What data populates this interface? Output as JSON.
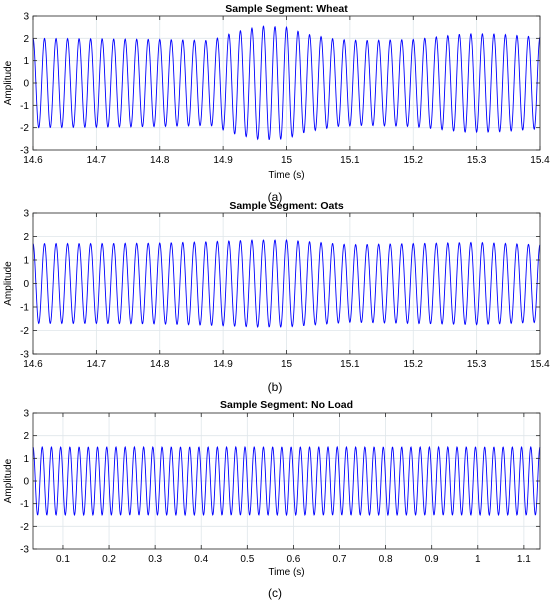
{
  "chart_data": [
    {
      "type": "line",
      "title": "Sample Segment: Wheat",
      "xlabel": "Time (s)",
      "ylabel": "Amplitude",
      "panel_label": "(a)",
      "xlim": [
        14.6,
        15.4
      ],
      "ylim": [
        -3,
        3
      ],
      "x_ticks": [
        "14.6",
        "14.7",
        "14.8",
        "14.9",
        "15",
        "15.1",
        "15.2",
        "15.3",
        "15.4"
      ],
      "y_ticks": [
        "-3",
        "-2",
        "-1",
        "0",
        "1",
        "2",
        "3"
      ],
      "grid": true,
      "signal": {
        "cycles_in_window": 44,
        "envelope": {
          "t": [
            14.6,
            14.7,
            14.8,
            14.88,
            14.92,
            14.96,
            15.0,
            15.03,
            15.08,
            15.12,
            15.2,
            15.28,
            15.33,
            15.4
          ],
          "amp": [
            2.0,
            1.98,
            1.95,
            1.9,
            2.3,
            2.55,
            2.5,
            2.2,
            1.95,
            1.9,
            1.95,
            2.2,
            2.2,
            2.05
          ]
        }
      }
    },
    {
      "type": "line",
      "title": "Sample Segment: Oats",
      "xlabel": "",
      "ylabel": "Amplitude",
      "panel_label": "(b)",
      "xlim": [
        14.6,
        15.4
      ],
      "ylim": [
        -3,
        3
      ],
      "x_ticks": [
        "14.6",
        "14.7",
        "14.8",
        "14.9",
        "15",
        "15.1",
        "15.2",
        "15.3",
        "15.4"
      ],
      "y_ticks": [
        "-3",
        "-2",
        "-1",
        "0",
        "1",
        "2",
        "3"
      ],
      "grid": true,
      "signal": {
        "cycles_in_window": 44,
        "envelope": {
          "t": [
            14.6,
            14.7,
            14.8,
            14.88,
            14.95,
            15.0,
            15.05,
            15.1,
            15.2,
            15.3,
            15.4
          ],
          "amp": [
            1.7,
            1.7,
            1.72,
            1.78,
            1.85,
            1.85,
            1.75,
            1.65,
            1.7,
            1.75,
            1.65
          ]
        }
      }
    },
    {
      "type": "line",
      "title": "Sample Segment: No Load",
      "xlabel": "Time (s)",
      "ylabel": "Amplitude",
      "panel_label": "(c)",
      "xlim": [
        0.035,
        1.135
      ],
      "ylim": [
        -3,
        3
      ],
      "x_ticks": [
        "0.1",
        "0.2",
        "0.3",
        "0.4",
        "0.5",
        "0.6",
        "0.7",
        "0.8",
        "0.9",
        "1",
        "1.1"
      ],
      "y_ticks": [
        "-3",
        "-2",
        "-1",
        "0",
        "1",
        "2",
        "3"
      ],
      "grid": true,
      "signal": {
        "cycles_in_window": 55,
        "envelope": {
          "t": [
            0.035,
            1.135
          ],
          "amp": [
            1.5,
            1.5
          ]
        }
      }
    }
  ],
  "colors": {
    "line": "#0000ff",
    "axis": "#262626",
    "grid": "#dfe6ea",
    "text": "#000000"
  }
}
